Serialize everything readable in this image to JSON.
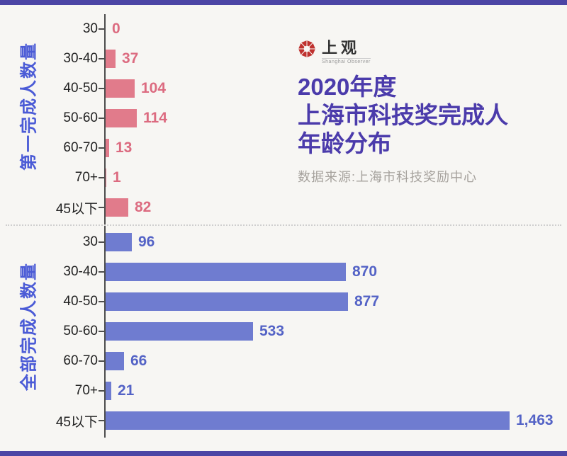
{
  "page": {
    "background_color": "#f7f6f3",
    "stripe_color": "#4c45a5"
  },
  "header": {
    "logo": {
      "name": "上观",
      "subtitle": "Shanghai Observer",
      "icon": "red-knot-octagon",
      "icon_color": "#bf312e"
    },
    "title_lines": [
      "2020年度",
      "上海市科技奖完成人",
      "年龄分布"
    ],
    "title_color": "#4b3bab",
    "source": "数据来源:上海市科技奖励中心"
  },
  "chart_data": {
    "type": "bar",
    "orientation": "horizontal",
    "grid": false,
    "legend_position": "none",
    "categories": [
      "30",
      "30-40",
      "40-50",
      "50-60",
      "60-70",
      "70+",
      "45以下"
    ],
    "series": [
      {
        "name": "第一完成人数量",
        "color": "#e17b8b",
        "value_color": "#dc6b80",
        "values": [
          0,
          37,
          104,
          114,
          13,
          1,
          82
        ],
        "labels": [
          "0",
          "37",
          "104",
          "114",
          "13",
          "1",
          "82"
        ]
      },
      {
        "name": "全部完成人数量",
        "color": "#6f7cd0",
        "value_color": "#5463c6",
        "values": [
          96,
          870,
          877,
          533,
          66,
          21,
          1463
        ],
        "labels": [
          "96",
          "870",
          "877",
          "533",
          "66",
          "21",
          "1,463"
        ]
      }
    ],
    "xlim": [
      0,
      1500
    ],
    "value_scale_max": 1463,
    "axis_label_color": "#4b5bd6",
    "title": "2020年度上海市科技奖完成人年龄分布"
  }
}
